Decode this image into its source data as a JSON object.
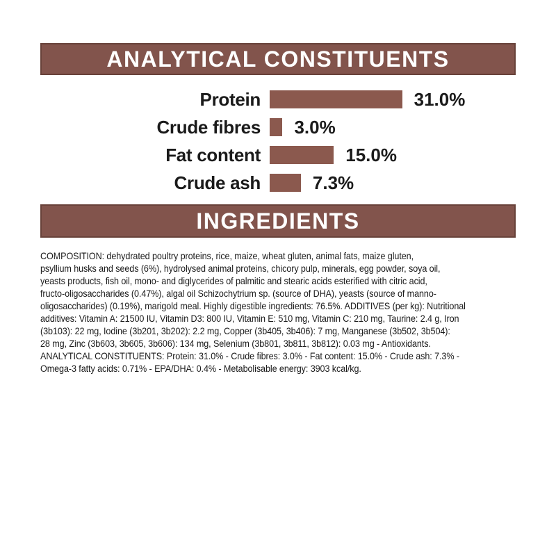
{
  "colors": {
    "header_background": "#82544C",
    "header_text": "#ffffff",
    "bar_fill": "#8B594E",
    "body_text": "#1a1a1a",
    "page_background": "#ffffff"
  },
  "analytical": {
    "title": "ANALYTICAL CONSTITUENTS"
  },
  "chart": {
    "rows": [
      {
        "label": "Protein",
        "value": 31.0,
        "display": "31.0%"
      },
      {
        "label": "Crude fibres",
        "value": 3.0,
        "display": "3.0%"
      },
      {
        "label": "Fat content",
        "value": 15.0,
        "display": "15.0%"
      },
      {
        "label": "Crude ash",
        "value": 7.3,
        "display": "7.3%"
      }
    ]
  },
  "chart_data": {
    "type": "bar",
    "orientation": "horizontal",
    "title": "ANALYTICAL CONSTITUENTS",
    "categories": [
      "Protein",
      "Crude fibres",
      "Fat content",
      "Crude ash"
    ],
    "values": [
      31.0,
      3.0,
      15.0,
      7.3
    ],
    "data_labels": [
      "31.0%",
      "3.0%",
      "15.0%",
      "7.3%"
    ],
    "unit": "%",
    "xlim": [
      0,
      31
    ],
    "grid": false,
    "legend": false
  },
  "ingredients": {
    "title": "INGREDIENTS",
    "body": "COMPOSITION: dehydrated poultry proteins, rice, maize, wheat gluten, animal fats, maize gluten,\npsyllium husks and seeds (6%), hydrolysed animal proteins, chicory pulp, minerals, egg powder, soya oil,\nyeasts products, fish oil, mono- and diglycerides of palmitic and stearic acids esterified with citric acid,\nfructo-oligosaccharides (0.47%), algal oil Schizochytrium sp. (source of DHA), yeasts (source of manno-\noligosaccharides) (0.19%), marigold meal. Highly digestible ingredients: 76.5%. ADDITIVES (per kg): Nutritional\nadditives: Vitamin A: 21500 IU, Vitamin D3: 800 IU, Vitamin E: 510 mg, Vitamin C: 210 mg, Taurine: 2.4 g, Iron\n(3b103): 22 mg, Iodine (3b201, 3b202): 2.2 mg, Copper (3b405, 3b406): 7 mg, Manganese (3b502, 3b504):\n28 mg, Zinc (3b603, 3b605, 3b606): 134 mg, Selenium (3b801, 3b811, 3b812): 0.03 mg - Antioxidants.\nANALYTICAL CONSTITUENTS: Protein: 31.0% - Crude fibres: 3.0% - Fat content: 15.0% - Crude ash: 7.3% -\nOmega-3 fatty acids: 0.71% - EPA/DHA: 0.4% - Metabolisable energy: 3903 kcal/kg."
  }
}
